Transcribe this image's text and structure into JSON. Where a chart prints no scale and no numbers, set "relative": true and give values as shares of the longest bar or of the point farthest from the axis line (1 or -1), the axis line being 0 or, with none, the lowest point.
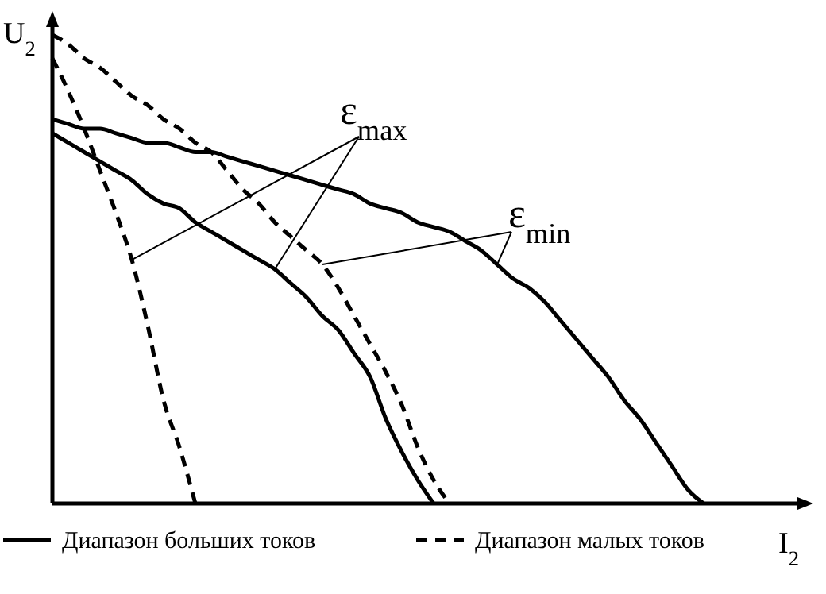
{
  "chart_data": {
    "type": "line",
    "relative": true,
    "legend": "bottom",
    "xlabel": "I$_{2}$",
    "ylabel": "U$_{2}$",
    "annotations": [
      "ε$_{max}$",
      "ε$_{min}$"
    ],
    "categories": [
      null,
      null,
      null,
      null,
      null,
      null,
      null,
      null,
      null,
      null,
      null,
      null,
      null,
      null,
      null,
      null,
      null,
      null,
      null,
      null,
      null,
      null,
      null,
      null,
      null,
      null,
      null,
      null,
      null,
      null,
      null,
      null,
      null,
      null,
      null,
      null,
      null,
      null,
      null,
      null,
      null,
      null
    ],
    "series": [
      {
        "name": "Диапазон больших токов",
        "color": "#000000",
        "line_style": "solid",
        "values": [
          0.82,
          0.81,
          0.8,
          0.8,
          0.79,
          0.78,
          0.77,
          0.77,
          0.76,
          0.75,
          0.75,
          0.74,
          0.73,
          0.72,
          0.71,
          0.7,
          0.69,
          0.68,
          0.67,
          0.66,
          0.64,
          0.63,
          0.62,
          0.6,
          0.59,
          0.58,
          0.56,
          0.54,
          0.51,
          0.48,
          0.46,
          0.43,
          0.39,
          0.35,
          0.31,
          0.27,
          0.22,
          0.18,
          0.13,
          0.08,
          0.03,
          0
        ]
      },
      {
        "color": "#000000",
        "line_style": "solid",
        "values": [
          0.79,
          0.77,
          0.75,
          0.73,
          0.71,
          0.69,
          0.66,
          0.64,
          0.63,
          0.6,
          0.58,
          0.56,
          0.54,
          0.52,
          0.5,
          0.47,
          0.44,
          0.4,
          0.37,
          0.32,
          0.27,
          0.18,
          0.11,
          0.05,
          0,
          null,
          null,
          null,
          null,
          null,
          null,
          null,
          null,
          null,
          null,
          null,
          null,
          null,
          null,
          null,
          null,
          null
        ]
      },
      {
        "name": "Диапазон малых токов",
        "color": "#000000",
        "line_style": "dashed",
        "values": [
          1,
          0.98,
          0.95,
          0.93,
          0.9,
          0.87,
          0.85,
          0.82,
          0.8,
          0.77,
          0.75,
          0.71,
          0.67,
          0.64,
          0.6,
          0.57,
          0.54,
          0.51,
          0.46,
          0.4,
          0.34,
          0.28,
          0.21,
          0.12,
          0.05,
          0,
          null,
          null,
          null,
          null,
          null,
          null,
          null,
          null,
          null,
          null,
          null,
          null,
          null,
          null,
          null,
          null
        ]
      },
      {
        "color": "#000000",
        "line_style": "dashed",
        "values": [
          0.95,
          0.88,
          0.8,
          0.71,
          0.62,
          0.52,
          0.38,
          0.22,
          0.12,
          0,
          null,
          null,
          null,
          null,
          null,
          null,
          null,
          null,
          null,
          null,
          null,
          null,
          null,
          null,
          null,
          null,
          null,
          null,
          null,
          null,
          null,
          null,
          null,
          null,
          null,
          null,
          null,
          null,
          null,
          null,
          null,
          null
        ]
      }
    ]
  }
}
